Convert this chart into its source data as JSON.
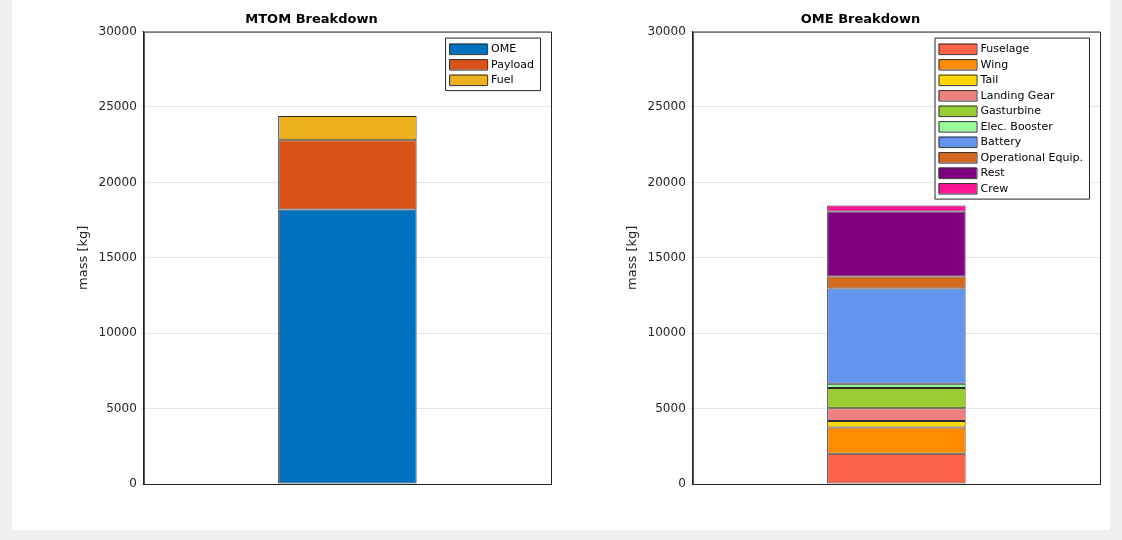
{
  "chart_data": [
    {
      "type": "bar",
      "title": "MTOM Breakdown",
      "ylabel": "mass [kg]",
      "categories": [
        null
      ],
      "stacked": true,
      "ylim": [
        0,
        30000
      ],
      "yticks": [
        0,
        5000,
        10000,
        15000,
        20000,
        25000,
        30000
      ],
      "grid": "y",
      "legend": "top right",
      "tick_labels": "y",
      "series": [
        {
          "name": "OME",
          "color": "#0072bd",
          "values": [
            18200
          ]
        },
        {
          "name": "Payload",
          "color": "#d95319",
          "values": [
            4600
          ]
        },
        {
          "name": "Fuel",
          "color": "#edb120",
          "values": [
            1600
          ]
        }
      ]
    },
    {
      "type": "bar",
      "title": "OME Breakdown",
      "ylabel": "mass [kg]",
      "categories": [
        null
      ],
      "stacked": true,
      "ylim": [
        0,
        30000
      ],
      "yticks": [
        0,
        5000,
        10000,
        15000,
        20000,
        25000,
        30000
      ],
      "grid": "y",
      "legend": "top right",
      "tick_labels": "y",
      "series": [
        {
          "name": "Fuselage",
          "color": "#ff6347",
          "values": [
            2000
          ]
        },
        {
          "name": "Wing",
          "color": "#ff8c00",
          "values": [
            1740
          ]
        },
        {
          "name": "Tail",
          "color": "#ffd700",
          "values": [
            430
          ]
        },
        {
          "name": "Landing Gear",
          "color": "#f08080",
          "values": [
            860
          ]
        },
        {
          "name": "Gasturbine",
          "color": "#9acd32",
          "values": [
            1340
          ]
        },
        {
          "name": "Elec. Booster",
          "color": "#98fb98",
          "values": [
            280
          ]
        },
        {
          "name": "Battery",
          "color": "#6495ed",
          "values": [
            6320
          ]
        },
        {
          "name": "Operational Equip.",
          "color": "#d2691e",
          "values": [
            790
          ]
        },
        {
          "name": "Rest",
          "color": "#800080",
          "values": [
            4310
          ]
        },
        {
          "name": "Crew",
          "color": "#ff1493",
          "values": [
            390
          ]
        }
      ]
    }
  ]
}
